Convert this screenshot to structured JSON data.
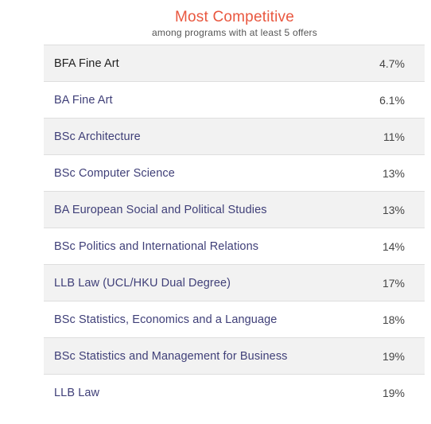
{
  "header": {
    "title": "Most Competitive",
    "subtitle": "among programs with at least 5 offers"
  },
  "rows": [
    {
      "program": "BFA Fine Art",
      "rate": "4.7%"
    },
    {
      "program": "BA Fine Art",
      "rate": "6.1%"
    },
    {
      "program": "BSc Architecture",
      "rate": "11%"
    },
    {
      "program": "BSc Computer Science",
      "rate": "13%"
    },
    {
      "program": "BA European Social and Political Studies",
      "rate": "13%"
    },
    {
      "program": "BSc Politics and International Relations",
      "rate": "14%"
    },
    {
      "program": "LLB Law (UCL/HKU Dual Degree)",
      "rate": "17%"
    },
    {
      "program": "BSc Statistics, Economics and a Language",
      "rate": "18%"
    },
    {
      "program": "BSc Statistics and Management for Business",
      "rate": "19%"
    },
    {
      "program": "LLB Law",
      "rate": "19%"
    }
  ]
}
